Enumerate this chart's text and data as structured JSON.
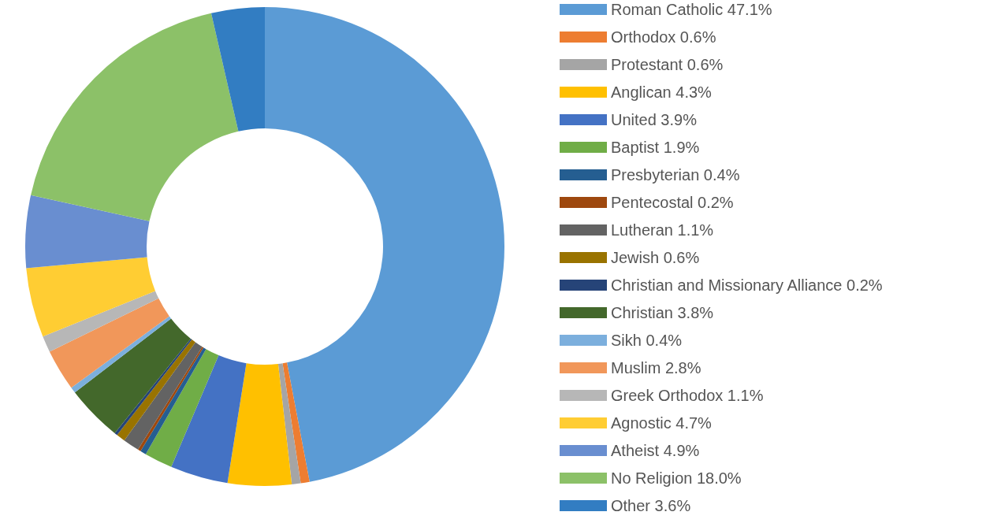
{
  "chart_data": {
    "type": "donut",
    "categories": [
      "Roman Catholic",
      "Orthodox",
      "Protestant",
      "Anglican",
      "United",
      "Baptist",
      "Presbyterian",
      "Pentecostal",
      "Lutheran",
      "Jewish",
      "Christian and Missionary Alliance",
      "Christian",
      "Sikh",
      "Muslim",
      "Greek Orthodox",
      "Agnostic",
      "Atheist",
      "No Religion",
      "Other"
    ],
    "values": [
      47.1,
      0.6,
      0.6,
      4.3,
      3.9,
      1.9,
      0.4,
      0.2,
      1.1,
      0.6,
      0.2,
      3.8,
      0.4,
      2.8,
      1.1,
      4.7,
      4.9,
      18.0,
      3.6
    ],
    "value_labels": [
      "47.1%",
      "0.6%",
      "0.6%",
      "4.3%",
      "3.9%",
      "1.9%",
      "0.4%",
      "0.2%",
      "1.1%",
      "0.6%",
      "0.2%",
      "3.8%",
      "0.4%",
      "2.8%",
      "1.1%",
      "4.7%",
      "4.9%",
      "18.0%",
      "3.6%"
    ],
    "colors": [
      "#5b9bd5",
      "#ed7d31",
      "#a5a5a5",
      "#ffc000",
      "#4472c4",
      "#70ad47",
      "#255e91",
      "#9e480e",
      "#636363",
      "#997300",
      "#264478",
      "#43682b",
      "#7cafdd",
      "#f1975a",
      "#b7b7b7",
      "#ffcd33",
      "#698ed0",
      "#8cc168",
      "#327dc2"
    ],
    "legend": "right"
  }
}
